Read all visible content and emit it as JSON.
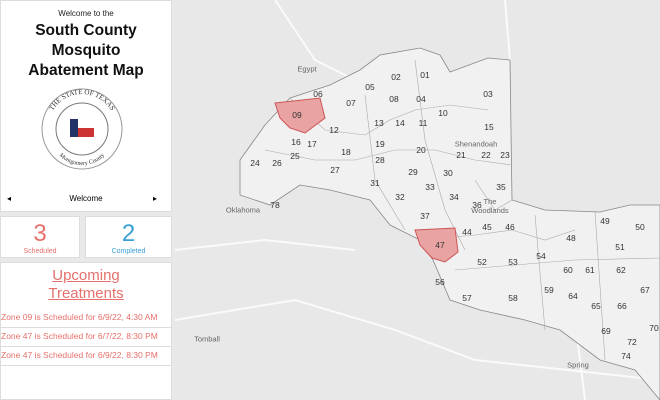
{
  "sidebar": {
    "welcome": "Welcome to the",
    "title": "South County Mosquito Abatement Map",
    "seal": {
      "top": "THE STATE OF TEXAS",
      "bottom": "Montgomery County"
    },
    "nav_label": "Welcome"
  },
  "stats": [
    {
      "value": 3,
      "label": "Scheduled"
    },
    {
      "value": 2,
      "label": "Completed"
    }
  ],
  "upcoming": {
    "title": "Upcoming Treatments",
    "items": [
      "Zone 09 is Scheduled for 6/9/22, 4:30 AM",
      "Zone 47 is Scheduled for 6/7/22, 8:30 PM",
      "Zone 47 is Scheduled for 6/9/22, 8:30 PM"
    ]
  },
  "map": {
    "places": [
      "Egypt",
      "Shenandoah",
      "The Woodlands",
      "Oklahoma",
      "Tomball",
      "Spring"
    ],
    "zones": [
      "01",
      "02",
      "03",
      "04",
      "05",
      "06",
      "07",
      "08",
      "09",
      "10",
      "11",
      "12",
      "13",
      "14",
      "15",
      "16",
      "17",
      "18",
      "19",
      "20",
      "21",
      "22",
      "23",
      "24",
      "25",
      "26",
      "27",
      "28",
      "29",
      "30",
      "31",
      "32",
      "33",
      "34",
      "35",
      "36",
      "37",
      "44",
      "45",
      "46",
      "47",
      "48",
      "49",
      "50",
      "51",
      "52",
      "53",
      "54",
      "56",
      "57",
      "58",
      "59",
      "60",
      "61",
      "62",
      "64",
      "65",
      "66",
      "67",
      "69",
      "70",
      "72",
      "74",
      "78"
    ]
  }
}
